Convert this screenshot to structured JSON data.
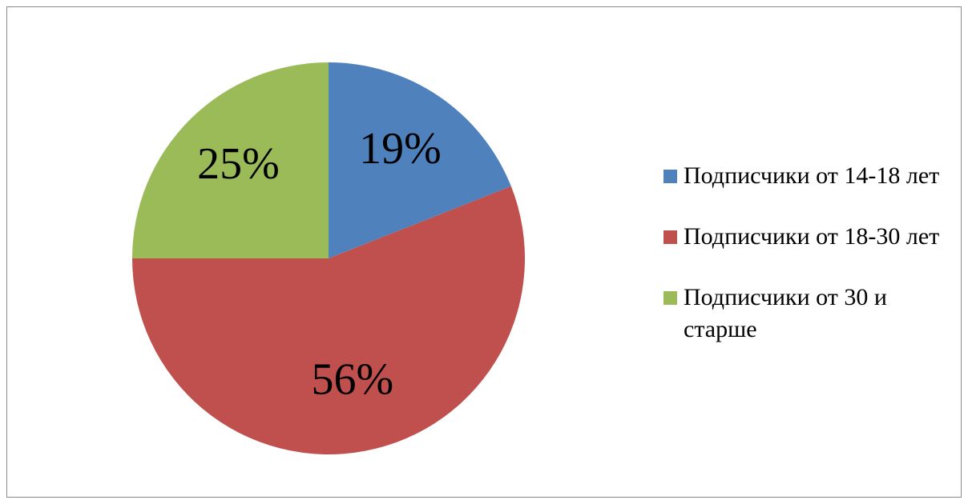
{
  "chart_data": {
    "type": "pie",
    "categories": [
      "Подписчики от 14-18 лет",
      "Подписчики от 18-30 лет",
      "Подписчики от 30 и старше"
    ],
    "values": [
      19,
      56,
      25
    ],
    "value_labels": [
      "19%",
      "56%",
      "25%"
    ],
    "colors": [
      "#4f81bd",
      "#c0504d",
      "#9bbb59"
    ],
    "legend": "right"
  }
}
